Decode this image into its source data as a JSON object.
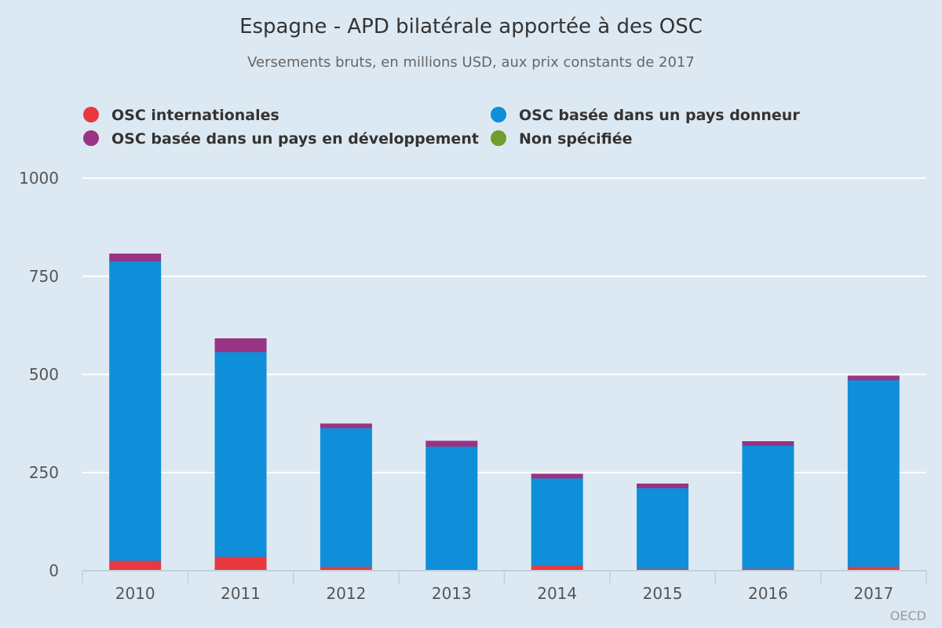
{
  "chart_data": {
    "type": "bar",
    "stacked": true,
    "title": "Espagne - APD bilatérale apportée à des OSC",
    "subtitle": "Versements bruts, en millions USD, aux prix constants de 2017",
    "categories": [
      "2010",
      "2011",
      "2012",
      "2013",
      "2014",
      "2015",
      "2016",
      "2017"
    ],
    "ylim": [
      0,
      1000
    ],
    "yticks": [
      0,
      250,
      500,
      750,
      1000
    ],
    "grid": true,
    "legend_position": "top",
    "series": [
      {
        "name": "OSC internationales",
        "color": "#e9383f",
        "values": [
          25,
          35,
          10,
          3,
          13,
          5,
          5,
          10
        ]
      },
      {
        "name": "OSC basée dans un pays donneur",
        "color": "#0f8fd9",
        "values": [
          763,
          522,
          353,
          313,
          222,
          205,
          313,
          475
        ]
      },
      {
        "name": "OSC basée dans un pays en développement",
        "color": "#993484",
        "values": [
          20,
          35,
          12,
          15,
          12,
          12,
          12,
          12
        ]
      },
      {
        "name": "Non spécifiée",
        "color": "#6e9e2b",
        "values": [
          0,
          0,
          0,
          0,
          0,
          0,
          0,
          0
        ]
      }
    ]
  },
  "credit": "OECD"
}
